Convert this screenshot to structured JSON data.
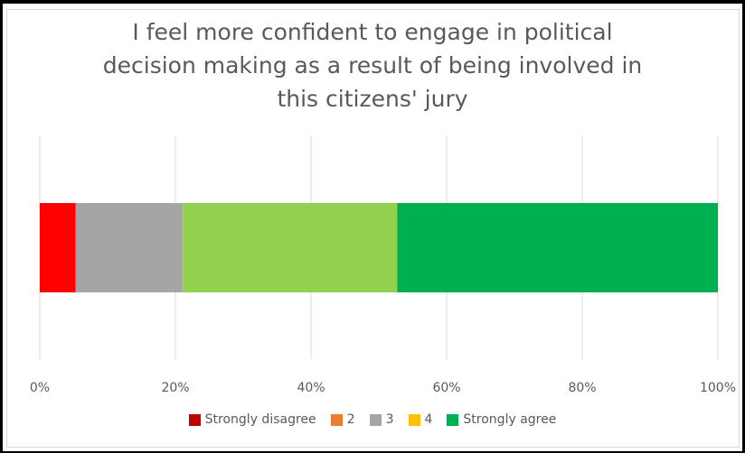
{
  "chart_data": {
    "type": "bar",
    "orientation": "horizontal",
    "stacked": true,
    "percent_stacked": true,
    "title_lines": [
      "I feel more confident to engage in political",
      "decision making as a result of being involved in",
      "this citizens' jury"
    ],
    "categories": [
      ""
    ],
    "series": [
      {
        "name": "Strongly disagree",
        "values": [
          5.3
        ],
        "color": "#ff0000",
        "legend_color": "#c00000"
      },
      {
        "name": "2",
        "values": [
          0
        ],
        "color": "#ed7d31",
        "legend_color": "#ed7d31"
      },
      {
        "name": "3",
        "values": [
          15.8
        ],
        "color": "#a5a5a5",
        "legend_color": "#a5a5a5"
      },
      {
        "name": "",
        "values": [
          31.6
        ],
        "color": "#92d050",
        "legend_color": "#92d050"
      },
      {
        "name": "4",
        "values": [
          0
        ],
        "color": "#ffc000",
        "legend_color": "#ffc000"
      },
      {
        "name": "Strongly agree",
        "values": [
          47.3
        ],
        "color": "#00b050",
        "legend_color": "#00b050"
      }
    ],
    "legend_order": [
      0,
      1,
      2,
      4,
      5
    ],
    "xlim": [
      0,
      100
    ],
    "xticks": [
      "0%",
      "20%",
      "40%",
      "60%",
      "80%",
      "100%"
    ],
    "grid": "vertical",
    "legend_position": "bottom"
  }
}
